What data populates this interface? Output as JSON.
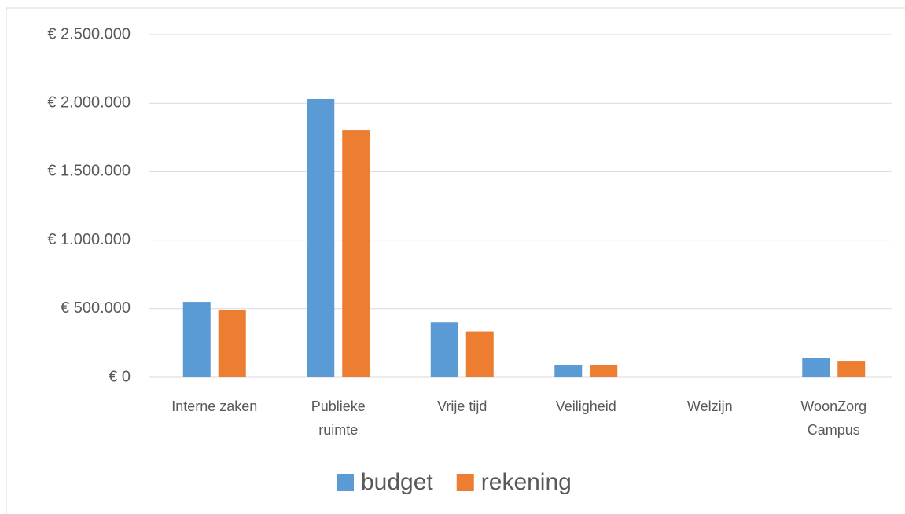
{
  "chart_data": {
    "type": "bar",
    "categories": [
      "Interne zaken",
      "Publieke ruimte",
      "Vrije tijd",
      "Veiligheid",
      "Welzijn",
      "WoonZorg Campus"
    ],
    "series": [
      {
        "name": "budget",
        "color": "#5b9bd5",
        "values": [
          550000,
          2030000,
          400000,
          90000,
          0,
          140000
        ]
      },
      {
        "name": "rekening",
        "color": "#ed7d31",
        "values": [
          490000,
          1800000,
          335000,
          90000,
          0,
          120000
        ]
      }
    ],
    "ylim": [
      0,
      2500000
    ],
    "yticks": [
      {
        "value": 0,
        "label": "€ 0"
      },
      {
        "value": 500000,
        "label": "€ 500.000"
      },
      {
        "value": 1000000,
        "label": "€ 1.000.000"
      },
      {
        "value": 1500000,
        "label": "€ 1.500.000"
      },
      {
        "value": 2000000,
        "label": "€ 2.000.000"
      },
      {
        "value": 2500000,
        "label": "€ 2.500.000"
      }
    ],
    "grid": true,
    "legend": "bottom"
  }
}
